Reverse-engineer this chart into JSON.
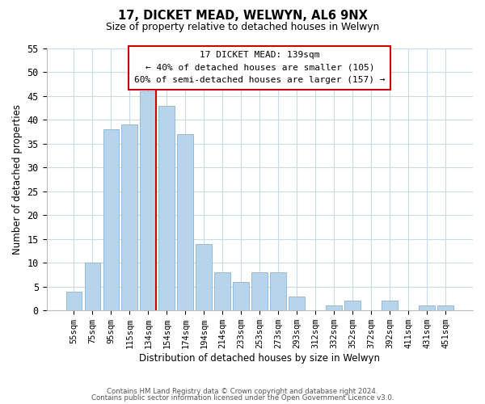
{
  "title": "17, DICKET MEAD, WELWYN, AL6 9NX",
  "subtitle": "Size of property relative to detached houses in Welwyn",
  "xlabel": "Distribution of detached houses by size in Welwyn",
  "ylabel": "Number of detached properties",
  "bar_labels": [
    "55sqm",
    "75sqm",
    "95sqm",
    "115sqm",
    "134sqm",
    "154sqm",
    "174sqm",
    "194sqm",
    "214sqm",
    "233sqm",
    "253sqm",
    "273sqm",
    "293sqm",
    "312sqm",
    "332sqm",
    "352sqm",
    "372sqm",
    "392sqm",
    "411sqm",
    "431sqm",
    "451sqm"
  ],
  "bar_values": [
    4,
    10,
    38,
    39,
    46,
    43,
    37,
    14,
    8,
    6,
    8,
    8,
    3,
    0,
    1,
    2,
    0,
    2,
    0,
    1,
    1
  ],
  "bar_color": "#b8d4ea",
  "bar_edge_color": "#88b4d4",
  "vline_color": "#cc0000",
  "vline_x_index": 4,
  "ylim": [
    0,
    55
  ],
  "yticks": [
    0,
    5,
    10,
    15,
    20,
    25,
    30,
    35,
    40,
    45,
    50,
    55
  ],
  "annotation_title": "17 DICKET MEAD: 139sqm",
  "annotation_line1": "← 40% of detached houses are smaller (105)",
  "annotation_line2": "60% of semi-detached houses are larger (157) →",
  "annotation_box_color": "#ffffff",
  "annotation_box_edge": "#cc0000",
  "footer1": "Contains HM Land Registry data © Crown copyright and database right 2024.",
  "footer2": "Contains public sector information licensed under the Open Government Licence v3.0.",
  "background_color": "#ffffff",
  "grid_color": "#c8dce8"
}
